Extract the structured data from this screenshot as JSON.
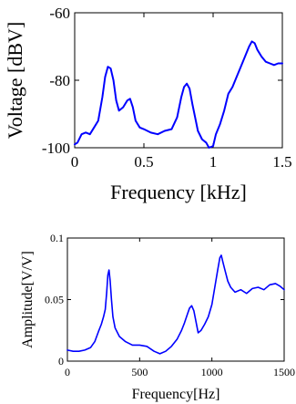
{
  "chart_data": [
    {
      "type": "line",
      "xlabel": "Frequency [kHz]",
      "ylabel": "Voltage [dBV]",
      "xlim": [
        0,
        1.5
      ],
      "ylim": [
        -100,
        -60
      ],
      "xticks": [
        0,
        0.5,
        1,
        1.5
      ],
      "xtick_labels": [
        "0",
        "0.5",
        "1",
        "1.5"
      ],
      "yticks": [
        -100,
        -80,
        -60
      ],
      "ytick_labels": [
        "-100",
        "-80",
        "-60"
      ],
      "grid": false,
      "line_color": "#0000ff",
      "series": [
        {
          "x": [
            0,
            0.02,
            0.05,
            0.08,
            0.11,
            0.14,
            0.17,
            0.2,
            0.22,
            0.24,
            0.26,
            0.28,
            0.3,
            0.32,
            0.35,
            0.38,
            0.4,
            0.42,
            0.44,
            0.47,
            0.5,
            0.55,
            0.6,
            0.65,
            0.7,
            0.74,
            0.77,
            0.79,
            0.81,
            0.83,
            0.85,
            0.87,
            0.89,
            0.92,
            0.95,
            0.97,
            1.0,
            1.02,
            1.05,
            1.08,
            1.11,
            1.14,
            1.17,
            1.2,
            1.23,
            1.26,
            1.28,
            1.3,
            1.32,
            1.35,
            1.38,
            1.41,
            1.44,
            1.47,
            1.5
          ],
          "y": [
            -99,
            -98.5,
            -96,
            -95.5,
            -96,
            -94,
            -92,
            -85,
            -79,
            -76,
            -76.5,
            -80,
            -86,
            -89,
            -88,
            -86,
            -85.5,
            -88,
            -92,
            -94,
            -94.5,
            -95.5,
            -96,
            -95,
            -94.5,
            -91,
            -85,
            -82,
            -81,
            -82.5,
            -87,
            -91,
            -95,
            -97.5,
            -98.5,
            -100,
            -99.5,
            -96,
            -93,
            -89,
            -84,
            -82,
            -79,
            -76,
            -73,
            -70,
            -68.5,
            -69,
            -71,
            -73,
            -74.5,
            -75,
            -75.5,
            -75,
            -75
          ]
        }
      ]
    },
    {
      "type": "line",
      "xlabel": "Frequency[Hz]",
      "ylabel": "Amplitude[V/V]",
      "xlim": [
        0,
        1500
      ],
      "ylim": [
        0,
        0.1
      ],
      "xticks": [
        0,
        500,
        1000,
        1500
      ],
      "xtick_labels": [
        "0",
        "500",
        "1000",
        "1500"
      ],
      "yticks": [
        0,
        0.05,
        0.1
      ],
      "ytick_labels": [
        "0",
        "0.05",
        "0.1"
      ],
      "grid": false,
      "line_color": "#0000ff",
      "series": [
        {
          "x": [
            0,
            40,
            80,
            120,
            160,
            190,
            215,
            235,
            250,
            262,
            272,
            280,
            288,
            296,
            305,
            315,
            330,
            360,
            400,
            450,
            500,
            550,
            600,
            640,
            680,
            720,
            760,
            790,
            810,
            830,
            845,
            860,
            875,
            890,
            905,
            925,
            950,
            975,
            1000,
            1020,
            1040,
            1055,
            1065,
            1075,
            1090,
            1110,
            1130,
            1160,
            1200,
            1240,
            1280,
            1320,
            1360,
            1400,
            1440,
            1470,
            1500
          ],
          "y": [
            0.009,
            0.008,
            0.008,
            0.009,
            0.011,
            0.016,
            0.024,
            0.03,
            0.036,
            0.042,
            0.056,
            0.07,
            0.074,
            0.065,
            0.05,
            0.036,
            0.027,
            0.02,
            0.016,
            0.013,
            0.013,
            0.012,
            0.008,
            0.006,
            0.008,
            0.012,
            0.018,
            0.025,
            0.031,
            0.038,
            0.043,
            0.045,
            0.041,
            0.032,
            0.023,
            0.025,
            0.03,
            0.036,
            0.046,
            0.06,
            0.074,
            0.084,
            0.086,
            0.081,
            0.074,
            0.065,
            0.06,
            0.056,
            0.058,
            0.055,
            0.059,
            0.06,
            0.058,
            0.062,
            0.063,
            0.061,
            0.058
          ]
        }
      ]
    }
  ]
}
